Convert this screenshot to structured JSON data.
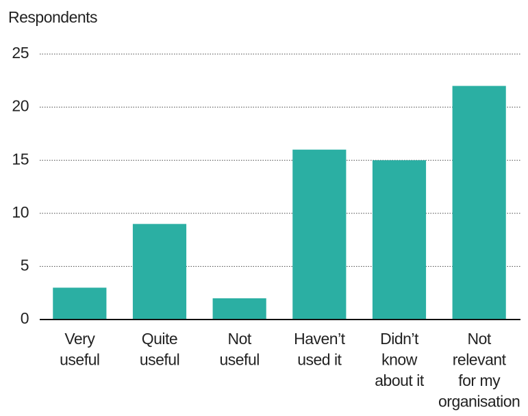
{
  "chart_data": {
    "type": "bar",
    "y_label": "Respondents",
    "categories": [
      "Very\nuseful",
      "Quite\nuseful",
      "Not\nuseful",
      "Haven’t\nused it",
      "Didn’t\nknow\nabout it",
      "Not\nrelevant\nfor my\norganisation"
    ],
    "values": [
      3,
      9,
      2,
      16,
      15,
      22
    ],
    "color": "#2bafa3",
    "ylim": [
      0,
      25
    ],
    "yticks": [
      0,
      5,
      10,
      15,
      20,
      25
    ],
    "grid": true
  }
}
